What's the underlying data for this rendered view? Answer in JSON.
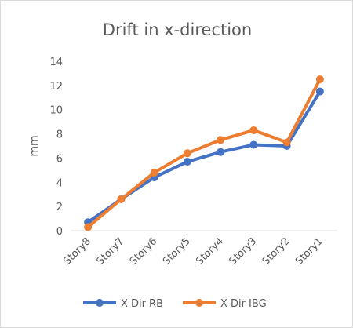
{
  "chart_data": {
    "type": "line",
    "title": "Drift in x-direction",
    "xlabel": "",
    "ylabel": "mm",
    "categories": [
      "Story8",
      "Story7",
      "Story6",
      "Story5",
      "Story4",
      "Story3",
      "Story2",
      "Story1"
    ],
    "ylim": [
      0,
      14
    ],
    "yticks": [
      "0",
      "2",
      "4",
      "6",
      "8",
      "10",
      "12",
      "14"
    ],
    "grid": false,
    "legend_position": "bottom",
    "series": [
      {
        "name": "X-Dir RB",
        "color": "#4472C4",
        "values": [
          0.7,
          2.6,
          4.4,
          5.7,
          6.5,
          7.1,
          7.0,
          11.5
        ]
      },
      {
        "name": "X-Dir IBG",
        "color": "#ED7D31",
        "values": [
          0.3,
          2.6,
          4.8,
          6.4,
          7.5,
          8.3,
          7.3,
          12.5
        ]
      }
    ]
  }
}
